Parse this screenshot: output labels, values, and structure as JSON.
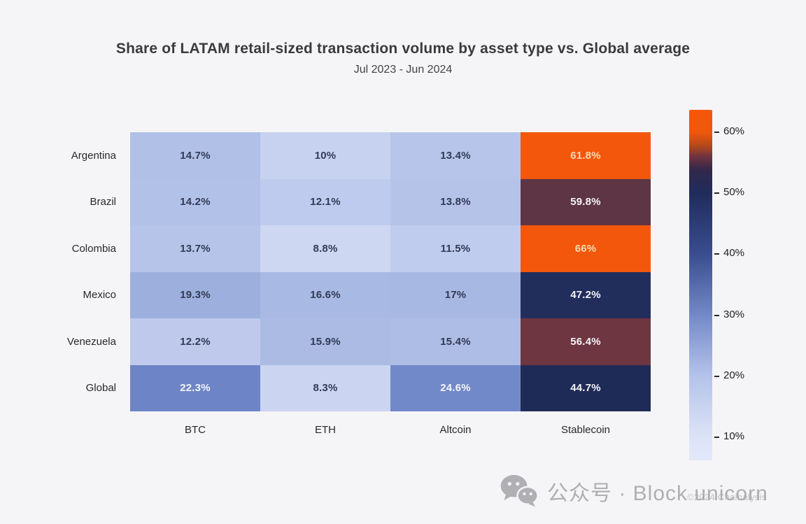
{
  "chart_data": {
    "type": "heatmap",
    "title": "Share of LATAM retail-sized transaction volume by asset type vs. Global average",
    "subtitle": "Jul 2023 - Jun 2024",
    "rows": [
      "Argentina",
      "Brazil",
      "Colombia",
      "Mexico",
      "Venezuela",
      "Global"
    ],
    "columns": [
      "BTC",
      "ETH",
      "Altcoin",
      "Stablecoin"
    ],
    "values": [
      [
        14.7,
        10,
        13.4,
        61.8
      ],
      [
        14.2,
        12.1,
        13.8,
        59.8
      ],
      [
        13.7,
        8.8,
        11.5,
        66
      ],
      [
        19.3,
        16.6,
        17,
        47.2
      ],
      [
        12.2,
        15.9,
        15.4,
        56.4
      ],
      [
        22.3,
        8.3,
        24.6,
        44.7
      ]
    ],
    "value_suffix": "%",
    "cell_colors": [
      [
        "#b1c0e7",
        "#c7d2f0",
        "#b7c5ea",
        "#f2570c"
      ],
      [
        "#b2c1e8",
        "#bfcbee",
        "#b5c3e9",
        "#5d3544"
      ],
      [
        "#b6c4ea",
        "#cdd7f2",
        "#c0cced",
        "#f3570b"
      ],
      [
        "#9db0dd",
        "#a8b9e3",
        "#a7b8e2",
        "#212d5b"
      ],
      [
        "#bec9ec",
        "#abbbe4",
        "#aebde6",
        "#6e3641"
      ],
      [
        "#6d85c6",
        "#cbd5f1",
        "#7289c9",
        "#1f2b57"
      ]
    ],
    "cell_text_colors": [
      [
        "dark",
        "dark",
        "dark",
        "cream"
      ],
      [
        "dark",
        "dark",
        "dark",
        "light"
      ],
      [
        "dark",
        "dark",
        "dark",
        "cream"
      ],
      [
        "dark",
        "dark",
        "dark",
        "light"
      ],
      [
        "dark",
        "dark",
        "dark",
        "light"
      ],
      [
        "light",
        "dark",
        "light",
        "light"
      ]
    ],
    "text_palette": {
      "dark": "#323a56",
      "light": "#f4f4f8",
      "cream": "#fbd9ad"
    },
    "colorbar": {
      "min": 6.2,
      "max": 63.7,
      "ticks": [
        60,
        50,
        40,
        30,
        20,
        10
      ],
      "tick_suffix": "%",
      "gradient": [
        {
          "pos": 0.0,
          "color": "#f6570a"
        },
        {
          "pos": 0.064,
          "color": "#ee580c"
        },
        {
          "pos": 0.1,
          "color": "#b84a1a"
        },
        {
          "pos": 0.134,
          "color": "#6f3340"
        },
        {
          "pos": 0.17,
          "color": "#33284a"
        },
        {
          "pos": 0.238,
          "color": "#1f2c5c"
        },
        {
          "pos": 0.412,
          "color": "#3a4d90"
        },
        {
          "pos": 0.586,
          "color": "#7489c7"
        },
        {
          "pos": 0.76,
          "color": "#b4c3ea"
        },
        {
          "pos": 0.934,
          "color": "#dde3f7"
        },
        {
          "pos": 1.0,
          "color": "#e3e8fa"
        }
      ],
      "legend_position": "right"
    },
    "grid": false
  },
  "watermark": {
    "text": "公众号 · Block unicorn"
  },
  "copyright": "©2024 Chainalysis"
}
